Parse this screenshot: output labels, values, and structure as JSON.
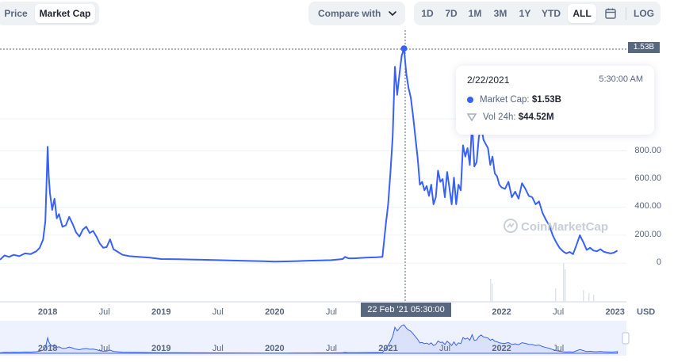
{
  "toolbar": {
    "tabs": [
      {
        "label": "Price"
      },
      {
        "label": "Market Cap"
      }
    ],
    "compare_label": "Compare with",
    "ranges": [
      {
        "label": "1D"
      },
      {
        "label": "7D"
      },
      {
        "label": "1M"
      },
      {
        "label": "3M"
      },
      {
        "label": "1Y"
      },
      {
        "label": "YTD"
      },
      {
        "label": "ALL"
      }
    ],
    "log_label": "LOG"
  },
  "tooltip": {
    "date": "2/22/2021",
    "time": "5:30:00 AM",
    "market_cap_label": "Market Cap:",
    "market_cap_value": "$1.53B",
    "vol_label": "Vol 24h:",
    "vol_value": "$44.52M"
  },
  "crosshair": {
    "x_label": "22 Feb '21   05:30:00",
    "y_label": "1.53B"
  },
  "watermark": "CoinMarketCap",
  "currency": "USD",
  "colors": {
    "line": "#3861fb",
    "grid": "#eff2f5",
    "accent": "#3861fb"
  },
  "chart_data": {
    "type": "line",
    "y_unit": "M USD",
    "y_ticks": [
      {
        "label": "0",
        "value": 0
      },
      {
        "label": "200.00",
        "value": 200
      },
      {
        "label": "400.00",
        "value": 400
      },
      {
        "label": "600.00",
        "value": 600
      },
      {
        "label": "800.00",
        "value": 800
      }
    ],
    "ylim": [
      -100,
      1650
    ],
    "x_ticks": [
      {
        "label": "2018",
        "x": 2018.0,
        "bold": true
      },
      {
        "label": "Jul",
        "x": 2018.5,
        "bold": false
      },
      {
        "label": "2019",
        "x": 2019.0,
        "bold": true
      },
      {
        "label": "Jul",
        "x": 2019.5,
        "bold": false
      },
      {
        "label": "2020",
        "x": 2020.0,
        "bold": true
      },
      {
        "label": "Jul",
        "x": 2020.5,
        "bold": false
      },
      {
        "label": "2021",
        "x": 2021.0,
        "bold": true
      },
      {
        "label": "Jul",
        "x": 2021.5,
        "bold": false
      },
      {
        "label": "2022",
        "x": 2022.0,
        "bold": true
      },
      {
        "label": "Jul",
        "x": 2022.5,
        "bold": false
      },
      {
        "label": "2023",
        "x": 2023.0,
        "bold": true
      }
    ],
    "xlim": [
      2017.58,
      2023.1
    ],
    "navigator_ticks": [
      {
        "label": "2018",
        "x": 2018.0,
        "bold": true
      },
      {
        "label": "Jul",
        "x": 2018.5,
        "bold": false
      },
      {
        "label": "2019",
        "x": 2019.0,
        "bold": true
      },
      {
        "label": "Jul",
        "x": 2019.5,
        "bold": false
      },
      {
        "label": "2020",
        "x": 2020.0,
        "bold": true
      },
      {
        "label": "Jul",
        "x": 2020.5,
        "bold": false
      },
      {
        "label": "2021",
        "x": 2021.0,
        "bold": true
      },
      {
        "label": "Jul",
        "x": 2021.5,
        "bold": false
      },
      {
        "label": "2022",
        "x": 2022.0,
        "bold": true
      },
      {
        "label": "Jul",
        "x": 2022.5,
        "bold": false
      }
    ],
    "highlight": {
      "x": 2021.14,
      "y": 1530
    },
    "series": [
      {
        "x": [
          2017.58,
          2017.62,
          2017.66,
          2017.7,
          2017.75,
          2017.8,
          2017.85,
          2017.9,
          2017.93,
          2017.96,
          2017.98,
          2018.0,
          2018.01,
          2018.02,
          2018.04,
          2018.06,
          2018.08,
          2018.1,
          2018.13,
          2018.16,
          2018.19,
          2018.22,
          2018.25,
          2018.28,
          2018.31,
          2018.34,
          2018.37,
          2018.4,
          2018.43,
          2018.46,
          2018.49,
          2018.52,
          2018.55,
          2018.58,
          2018.62,
          2018.66,
          2018.72,
          2018.8,
          2018.9,
          2019.0,
          2019.15,
          2019.3,
          2019.5,
          2019.7,
          2019.9,
          2020.0,
          2020.1,
          2020.2,
          2020.3,
          2020.4,
          2020.5,
          2020.6,
          2020.62,
          2020.65,
          2020.7,
          2020.8,
          2020.9,
          2020.95,
          2020.98,
          2021.0,
          2021.02,
          2021.04,
          2021.06,
          2021.08,
          2021.1,
          2021.12,
          2021.14,
          2021.16,
          2021.18,
          2021.2,
          2021.22,
          2021.24,
          2021.26,
          2021.28,
          2021.3,
          2021.32,
          2021.34,
          2021.36,
          2021.38,
          2021.4,
          2021.42,
          2021.44,
          2021.46,
          2021.48,
          2021.5,
          2021.52,
          2021.54,
          2021.56,
          2021.58,
          2021.6,
          2021.62,
          2021.64,
          2021.66,
          2021.68,
          2021.7,
          2021.72,
          2021.74,
          2021.76,
          2021.78,
          2021.8,
          2021.82,
          2021.84,
          2021.86,
          2021.88,
          2021.9,
          2021.92,
          2021.94,
          2021.96,
          2021.98,
          2022.0,
          2022.03,
          2022.06,
          2022.09,
          2022.12,
          2022.15,
          2022.18,
          2022.21,
          2022.24,
          2022.27,
          2022.3,
          2022.33,
          2022.36,
          2022.39,
          2022.42,
          2022.45,
          2022.48,
          2022.51,
          2022.54,
          2022.57,
          2022.6,
          2022.63,
          2022.66,
          2022.69,
          2022.72,
          2022.75,
          2022.78,
          2022.81,
          2022.84,
          2022.87,
          2022.9,
          2022.93,
          2022.96,
          2022.99,
          2023.02
        ],
        "y": [
          25,
          55,
          45,
          60,
          50,
          70,
          65,
          85,
          110,
          170,
          300,
          830,
          620,
          500,
          380,
          460,
          320,
          350,
          260,
          270,
          330,
          280,
          220,
          190,
          240,
          260,
          215,
          230,
          190,
          140,
          110,
          115,
          170,
          100,
          80,
          60,
          50,
          45,
          40,
          30,
          28,
          26,
          22,
          18,
          14,
          12,
          13,
          15,
          18,
          20,
          22,
          30,
          45,
          35,
          35,
          40,
          42,
          45,
          280,
          420,
          640,
          900,
          1400,
          1200,
          1350,
          1480,
          1530,
          1350,
          1250,
          1180,
          1050,
          900,
          750,
          560,
          580,
          520,
          550,
          480,
          560,
          420,
          470,
          660,
          580,
          600,
          470,
          650,
          540,
          420,
          610,
          420,
          560,
          520,
          840,
          760,
          820,
          700,
          1000,
          690,
          720,
          900,
          980,
          880,
          850,
          820,
          700,
          760,
          640,
          620,
          560,
          540,
          530,
          580,
          470,
          510,
          460,
          570,
          530,
          480,
          470,
          420,
          440,
          360,
          310,
          270,
          200,
          150,
          110,
          85,
          70,
          80,
          65,
          130,
          200,
          150,
          95,
          110,
          90,
          85,
          100,
          82,
          75,
          70,
          75,
          90
        ]
      }
    ]
  }
}
